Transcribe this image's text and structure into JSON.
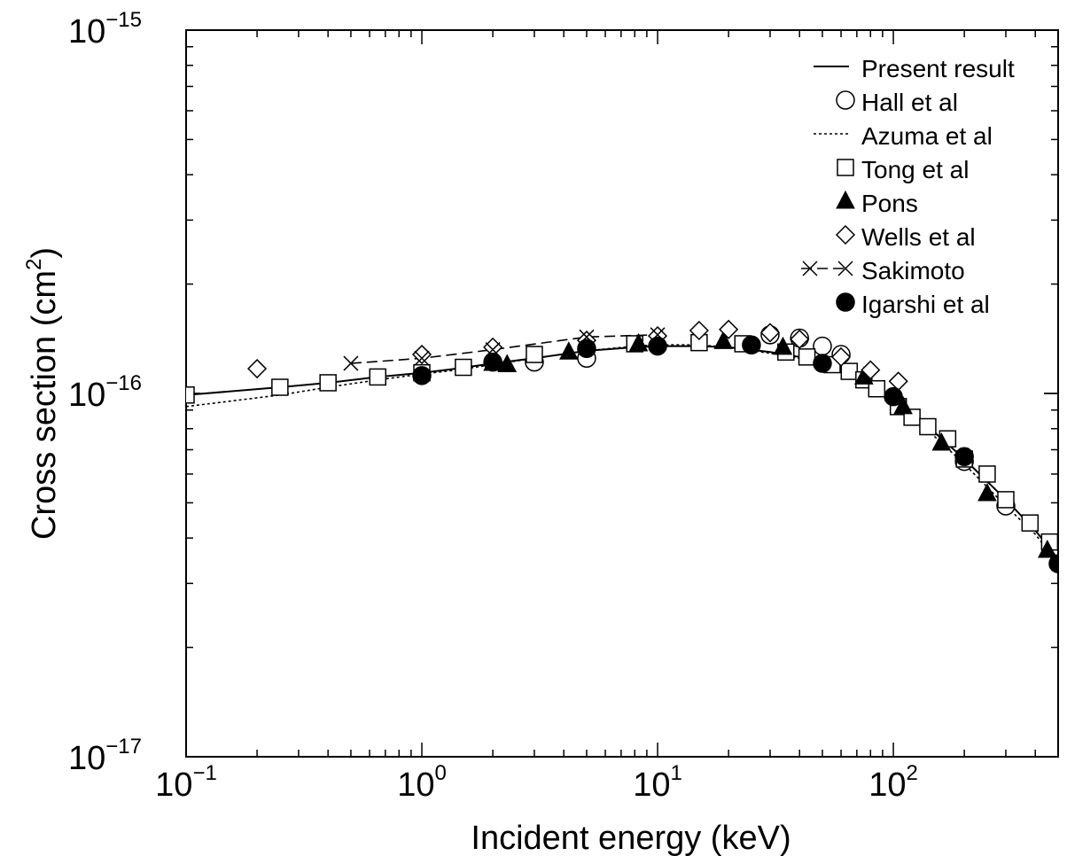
{
  "chart_data": {
    "type": "scatter",
    "xlabel": "Incident energy (keV)",
    "ylabel_main": "Cross section (cm",
    "ylabel_sup": "2",
    "ylabel_close": ")",
    "x_scale": "log",
    "y_scale": "log",
    "xlim": [
      0.1,
      500
    ],
    "ylim": [
      1e-17,
      1e-15
    ],
    "legend_position": "top-right",
    "x_ticks": [
      {
        "value": 0.1,
        "base": "10",
        "exp": "−1"
      },
      {
        "value": 1,
        "base": "10",
        "exp": "0"
      },
      {
        "value": 10,
        "base": "10",
        "exp": "1"
      },
      {
        "value": 100,
        "base": "10",
        "exp": "2"
      }
    ],
    "y_ticks": [
      {
        "value": 1e-17,
        "base": "10",
        "exp": "−17"
      },
      {
        "value": 1e-16,
        "base": "10",
        "exp": "−16"
      },
      {
        "value": 1e-15,
        "base": "10",
        "exp": "−15"
      }
    ],
    "series": [
      {
        "name": "Present result",
        "marker": "line",
        "line": "solid",
        "x": [
          0.1,
          0.25,
          0.4,
          0.65,
          1.0,
          1.4,
          2.0,
          3.0,
          5.0,
          8.0,
          10.0,
          15.0,
          20.0,
          30.0,
          40.0,
          50.0,
          60.0,
          70.0,
          80.0,
          100.0,
          150.0,
          200.0,
          300.0,
          400.0,
          500.0
        ],
        "y": [
          9.9e-17,
          1.04e-16,
          1.07e-16,
          1.11e-16,
          1.14e-16,
          1.17e-16,
          1.21e-16,
          1.25e-16,
          1.31e-16,
          1.34e-16,
          1.35e-16,
          1.35e-16,
          1.34e-16,
          1.3e-16,
          1.26e-16,
          1.21e-16,
          1.16e-16,
          1.1e-16,
          1.05e-16,
          9.6e-17,
          7.8e-17,
          6.6e-17,
          5.1e-17,
          4.2e-17,
          3.5e-17
        ]
      },
      {
        "name": "Hall et al",
        "marker": "circle-open",
        "x": [
          3.0,
          5.0,
          30.0,
          40.0,
          50.0,
          60.0,
          200.0,
          300.0
        ],
        "y": [
          1.22e-16,
          1.25e-16,
          1.45e-16,
          1.42e-16,
          1.35e-16,
          1.28e-16,
          6.5e-17,
          4.9e-17
        ]
      },
      {
        "name": "Azuma et al",
        "marker": "line",
        "line": "dotted",
        "x": [
          0.1,
          0.25,
          0.4,
          0.65,
          1.0,
          1.4,
          2.0,
          3.0,
          5.0,
          8.0,
          10.0,
          15.0,
          20.0,
          30.0,
          40.0,
          50.0,
          60.0,
          70.0,
          80.0,
          100.0,
          150.0,
          200.0,
          300.0,
          400.0,
          500.0
        ],
        "y": [
          9.2e-17,
          9.9e-17,
          1.04e-16,
          1.09e-16,
          1.13e-16,
          1.16e-16,
          1.2e-16,
          1.25e-16,
          1.31e-16,
          1.35e-16,
          1.36e-16,
          1.36e-16,
          1.34e-16,
          1.29e-16,
          1.25e-16,
          1.2e-16,
          1.15e-16,
          1.09e-16,
          1.04e-16,
          9.4e-17,
          7.6e-17,
          6.4e-17,
          4.9e-17,
          4.1e-17,
          3.4e-17
        ]
      },
      {
        "name": "Tong et al",
        "marker": "square-open",
        "x": [
          0.1,
          0.25,
          0.4,
          0.65,
          1.0,
          1.5,
          3.0,
          8.0,
          15.0,
          23.0,
          35.0,
          43.0,
          55.0,
          65.0,
          75.0,
          85.0,
          105.0,
          120.0,
          140.0,
          170.0,
          200.0,
          250.0,
          300.0,
          380.0,
          460.0
        ],
        "y": [
          9.9e-17,
          1.04e-16,
          1.07e-16,
          1.11e-16,
          1.14e-16,
          1.18e-16,
          1.28e-16,
          1.37e-16,
          1.38e-16,
          1.37e-16,
          1.3e-16,
          1.26e-16,
          1.2e-16,
          1.15e-16,
          1.09e-16,
          1.03e-16,
          9.2e-17,
          8.6e-17,
          8.1e-17,
          7.5e-17,
          6.6e-17,
          6e-17,
          5.1e-17,
          4.4e-17,
          3.9e-17
        ]
      },
      {
        "name": "Pons",
        "marker": "triangle-filled",
        "x": [
          2.0,
          2.3,
          4.2,
          8.3,
          19.0,
          34.0,
          75.0,
          110.0,
          160.0,
          250.0,
          450.0
        ],
        "y": [
          1.21e-16,
          1.2e-16,
          1.3e-16,
          1.37e-16,
          1.39e-16,
          1.34e-16,
          1.11e-16,
          9.2e-17,
          7.3e-17,
          5.3e-17,
          3.7e-17
        ]
      },
      {
        "name": "Wells et al",
        "marker": "diamond-open",
        "x": [
          0.2,
          1.0,
          2.0,
          5.0,
          10.0,
          15.0,
          20.0,
          30.0,
          40.0,
          60.0,
          80.0,
          105.0
        ],
        "y": [
          1.17e-16,
          1.28e-16,
          1.34e-16,
          1.4e-16,
          1.44e-16,
          1.49e-16,
          1.5e-16,
          1.47e-16,
          1.41e-16,
          1.26e-16,
          1.16e-16,
          1.08e-16
        ]
      },
      {
        "name": "Sakimoto",
        "marker": "cross",
        "line": "dashed",
        "x": [
          0.5,
          1.0,
          2.0,
          5.0,
          10.0
        ],
        "y": [
          1.21e-16,
          1.25e-16,
          1.32e-16,
          1.43e-16,
          1.45e-16
        ]
      },
      {
        "name": "Igarshi et al",
        "marker": "circle-filled",
        "x": [
          1.0,
          2.0,
          5.0,
          10.0,
          25.0,
          50.0,
          100.0,
          200.0,
          500.0
        ],
        "y": [
          1.12e-16,
          1.22e-16,
          1.33e-16,
          1.35e-16,
          1.36e-16,
          1.21e-16,
          9.8e-17,
          6.7e-17,
          3.4e-17
        ]
      }
    ]
  }
}
